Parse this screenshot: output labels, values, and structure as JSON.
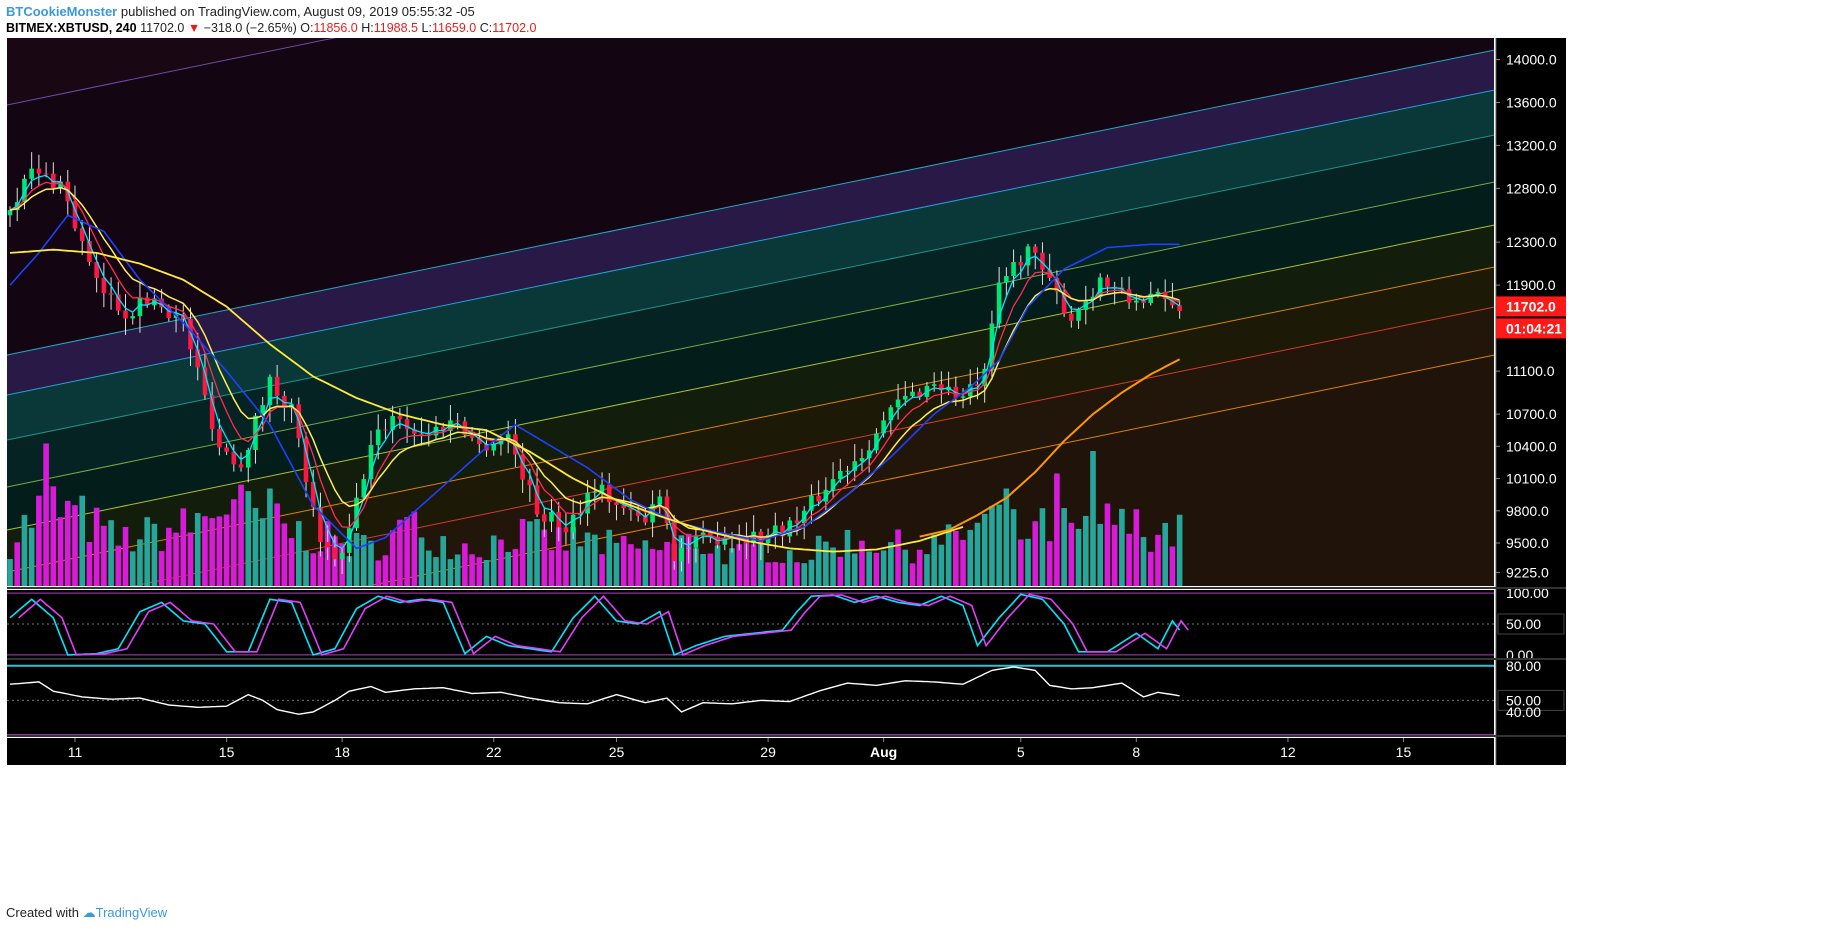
{
  "header": {
    "author": "BTCookieMonster",
    "published_text": "published on TradingView.com, August 09, 2019 05:55:32 -05",
    "symbol": "BITMEX:XBTUSD, 240",
    "last": "11702.0",
    "change": "−318.0 (−2.65%)",
    "o_label": "O:",
    "o": "11856.0",
    "h_label": "H:",
    "h": "11988.5",
    "l_label": "L:",
    "l": "11659.0",
    "c_label": "C:",
    "c": "11702.0"
  },
  "footer": {
    "created_with": "Created with",
    "brand": "TradingView"
  },
  "colors": {
    "bg": "#000000",
    "candle_up": "#00e676",
    "candle_down": "#ff1744",
    "vol_up": "#26a69a",
    "vol_down": "#d81bd8",
    "ema_fast": "#00e5ff",
    "ema_mid": "#ff2d55",
    "ema_slow": "#ffee58",
    "ma_blue": "#1e40ff",
    "ma_yellow": "#ffeb3b",
    "ma_orange": "#ff9800",
    "price_tag": "#ff1a1a"
  },
  "chart_data": {
    "type": "candlestick",
    "price_axis_ticks": [
      "14000.0",
      "13600.0",
      "13200.0",
      "12800.0",
      "12300.0",
      "11900.0",
      "11100.0",
      "10700.0",
      "10400.0",
      "10100.0",
      "9800.0",
      "9500.0",
      "9225.0"
    ],
    "price_range": [
      9100,
      14200
    ],
    "x_ticks": [
      "11",
      "15",
      "18",
      "22",
      "25",
      "29",
      "Aug",
      "5",
      "8",
      "12",
      "15"
    ],
    "last_price_label": "11702.0",
    "countdown_label": "01:04:21",
    "stoch_rsi": {
      "ticks": [
        "100.00",
        "50.00",
        "0.00"
      ],
      "range": [
        -5,
        105
      ]
    },
    "rsi": {
      "ticks": [
        "80.00",
        "50.00",
        "40.00"
      ],
      "upper": 80,
      "lower": 20,
      "range": [
        20,
        85
      ]
    },
    "price_path": [
      [
        0,
        12550
      ],
      [
        4,
        12950
      ],
      [
        8,
        12850
      ],
      [
        13,
        11900
      ],
      [
        17,
        11650
      ],
      [
        21,
        11780
      ],
      [
        25,
        11550
      ],
      [
        30,
        10400
      ],
      [
        33,
        10250
      ],
      [
        37,
        11000
      ],
      [
        40,
        10750
      ],
      [
        44,
        9450
      ],
      [
        47,
        9350
      ],
      [
        51,
        10400
      ],
      [
        54,
        10700
      ],
      [
        58,
        10500
      ],
      [
        63,
        10650
      ],
      [
        66,
        10400
      ],
      [
        70,
        10500
      ],
      [
        74,
        9800
      ],
      [
        78,
        9650
      ],
      [
        82,
        10050
      ],
      [
        86,
        9800
      ],
      [
        89,
        9700
      ],
      [
        91,
        10000
      ],
      [
        93,
        9400
      ],
      [
        96,
        9500
      ],
      [
        101,
        9600
      ],
      [
        105,
        9550
      ],
      [
        110,
        9700
      ],
      [
        115,
        10100
      ],
      [
        119,
        10350
      ],
      [
        124,
        10800
      ],
      [
        129,
        11000
      ],
      [
        133,
        10850
      ],
      [
        136,
        11050
      ],
      [
        138,
        11900
      ],
      [
        142,
        12250
      ],
      [
        145,
        11900
      ],
      [
        148,
        11600
      ],
      [
        152,
        11950
      ],
      [
        156,
        11750
      ],
      [
        159,
        11800
      ],
      [
        162,
        11700
      ]
    ],
    "volume_path": [
      [
        0,
        0.3
      ],
      [
        5,
        0.55
      ],
      [
        10,
        0.45
      ],
      [
        15,
        0.3
      ],
      [
        20,
        0.35
      ],
      [
        25,
        0.4
      ],
      [
        30,
        0.55
      ],
      [
        35,
        0.45
      ],
      [
        40,
        0.35
      ],
      [
        45,
        0.3
      ],
      [
        50,
        0.25
      ],
      [
        55,
        0.4
      ],
      [
        60,
        0.3
      ],
      [
        65,
        0.25
      ],
      [
        70,
        0.35
      ],
      [
        75,
        0.3
      ],
      [
        80,
        0.3
      ],
      [
        85,
        0.25
      ],
      [
        90,
        0.25
      ],
      [
        95,
        0.3
      ],
      [
        100,
        0.2
      ],
      [
        105,
        0.25
      ],
      [
        110,
        0.2
      ],
      [
        115,
        0.3
      ],
      [
        120,
        0.3
      ],
      [
        125,
        0.25
      ],
      [
        130,
        0.3
      ],
      [
        136,
        0.45
      ],
      [
        140,
        0.35
      ],
      [
        145,
        0.4
      ],
      [
        150,
        0.35
      ],
      [
        155,
        0.4
      ],
      [
        162,
        0.35
      ]
    ],
    "volume_spikes": [
      [
        5,
        0.95
      ],
      [
        36,
        0.65
      ],
      [
        37,
        0.55
      ],
      [
        138,
        0.65
      ],
      [
        145,
        0.75
      ],
      [
        150,
        0.9
      ],
      [
        152,
        0.55
      ]
    ],
    "ma_blue_path": [
      [
        0,
        11900
      ],
      [
        4,
        12200
      ],
      [
        8,
        12550
      ],
      [
        13,
        12400
      ],
      [
        18,
        11950
      ],
      [
        24,
        11550
      ],
      [
        30,
        11100
      ],
      [
        36,
        10600
      ],
      [
        42,
        9850
      ],
      [
        48,
        9450
      ],
      [
        52,
        9550
      ],
      [
        57,
        9850
      ],
      [
        62,
        10150
      ],
      [
        67,
        10450
      ],
      [
        70,
        10600
      ],
      [
        75,
        10400
      ],
      [
        80,
        10200
      ],
      [
        86,
        9900
      ],
      [
        92,
        9700
      ],
      [
        98,
        9600
      ],
      [
        104,
        9520
      ],
      [
        110,
        9650
      ],
      [
        116,
        9950
      ],
      [
        122,
        10300
      ],
      [
        128,
        10700
      ],
      [
        133,
        10950
      ],
      [
        137,
        11200
      ],
      [
        141,
        11700
      ],
      [
        146,
        12050
      ],
      [
        152,
        12250
      ],
      [
        158,
        12280
      ],
      [
        162,
        12280
      ]
    ],
    "ma_yellow_path": [
      [
        0,
        12200
      ],
      [
        6,
        12230
      ],
      [
        12,
        12200
      ],
      [
        18,
        12100
      ],
      [
        24,
        11950
      ],
      [
        30,
        11700
      ],
      [
        36,
        11350
      ],
      [
        42,
        11050
      ],
      [
        48,
        10850
      ],
      [
        54,
        10700
      ],
      [
        60,
        10600
      ],
      [
        66,
        10550
      ],
      [
        72,
        10350
      ],
      [
        78,
        10100
      ],
      [
        84,
        9900
      ],
      [
        90,
        9750
      ],
      [
        96,
        9620
      ],
      [
        102,
        9520
      ],
      [
        108,
        9450
      ],
      [
        114,
        9420
      ],
      [
        120,
        9440
      ],
      [
        126,
        9520
      ],
      [
        132,
        9650
      ]
    ],
    "ma_orange_path": [
      [
        126,
        9560
      ],
      [
        130,
        9620
      ],
      [
        134,
        9760
      ],
      [
        138,
        9920
      ],
      [
        142,
        10160
      ],
      [
        146,
        10450
      ],
      [
        150,
        10700
      ],
      [
        154,
        10900
      ],
      [
        158,
        11070
      ],
      [
        162,
        11210
      ]
    ],
    "stoch_path": [
      [
        0,
        60
      ],
      [
        3,
        90
      ],
      [
        6,
        60
      ],
      [
        8,
        0
      ],
      [
        12,
        2
      ],
      [
        15,
        10
      ],
      [
        18,
        70
      ],
      [
        21,
        85
      ],
      [
        24,
        55
      ],
      [
        27,
        50
      ],
      [
        30,
        5
      ],
      [
        33,
        5
      ],
      [
        36,
        90
      ],
      [
        39,
        85
      ],
      [
        42,
        0
      ],
      [
        45,
        10
      ],
      [
        48,
        75
      ],
      [
        51,
        95
      ],
      [
        54,
        85
      ],
      [
        57,
        90
      ],
      [
        60,
        85
      ],
      [
        63,
        2
      ],
      [
        66,
        30
      ],
      [
        69,
        15
      ],
      [
        72,
        10
      ],
      [
        75,
        5
      ],
      [
        78,
        60
      ],
      [
        81,
        95
      ],
      [
        84,
        55
      ],
      [
        87,
        50
      ],
      [
        90,
        70
      ],
      [
        92,
        0
      ],
      [
        95,
        15
      ],
      [
        99,
        30
      ],
      [
        103,
        35
      ],
      [
        107,
        40
      ],
      [
        109,
        70
      ],
      [
        111,
        95
      ],
      [
        114,
        97
      ],
      [
        117,
        85
      ],
      [
        120,
        95
      ],
      [
        123,
        85
      ],
      [
        126,
        80
      ],
      [
        129,
        95
      ],
      [
        132,
        80
      ],
      [
        134,
        15
      ],
      [
        137,
        60
      ],
      [
        140,
        98
      ],
      [
        143,
        90
      ],
      [
        146,
        50
      ],
      [
        148,
        5
      ],
      [
        152,
        5
      ],
      [
        156,
        35
      ],
      [
        159,
        10
      ],
      [
        161,
        55
      ],
      [
        162,
        40
      ]
    ],
    "rsi_path": [
      [
        0,
        64
      ],
      [
        4,
        66
      ],
      [
        6,
        58
      ],
      [
        10,
        53
      ],
      [
        14,
        51
      ],
      [
        18,
        52
      ],
      [
        22,
        46
      ],
      [
        26,
        44
      ],
      [
        30,
        45
      ],
      [
        33,
        55
      ],
      [
        35,
        50
      ],
      [
        37,
        42
      ],
      [
        40,
        38
      ],
      [
        42,
        40
      ],
      [
        45,
        50
      ],
      [
        47,
        58
      ],
      [
        50,
        62
      ],
      [
        52,
        57
      ],
      [
        56,
        60
      ],
      [
        60,
        61
      ],
      [
        64,
        56
      ],
      [
        68,
        57
      ],
      [
        72,
        52
      ],
      [
        76,
        48
      ],
      [
        80,
        47
      ],
      [
        84,
        55
      ],
      [
        88,
        48
      ],
      [
        91,
        52
      ],
      [
        93,
        40
      ],
      [
        96,
        48
      ],
      [
        100,
        47
      ],
      [
        104,
        50
      ],
      [
        108,
        49
      ],
      [
        112,
        58
      ],
      [
        116,
        65
      ],
      [
        120,
        63
      ],
      [
        124,
        67
      ],
      [
        128,
        66
      ],
      [
        132,
        64
      ],
      [
        136,
        76
      ],
      [
        139,
        79
      ],
      [
        142,
        76
      ],
      [
        144,
        63
      ],
      [
        147,
        60
      ],
      [
        150,
        61
      ],
      [
        154,
        65
      ],
      [
        157,
        53
      ],
      [
        159,
        57
      ],
      [
        162,
        54
      ]
    ]
  }
}
